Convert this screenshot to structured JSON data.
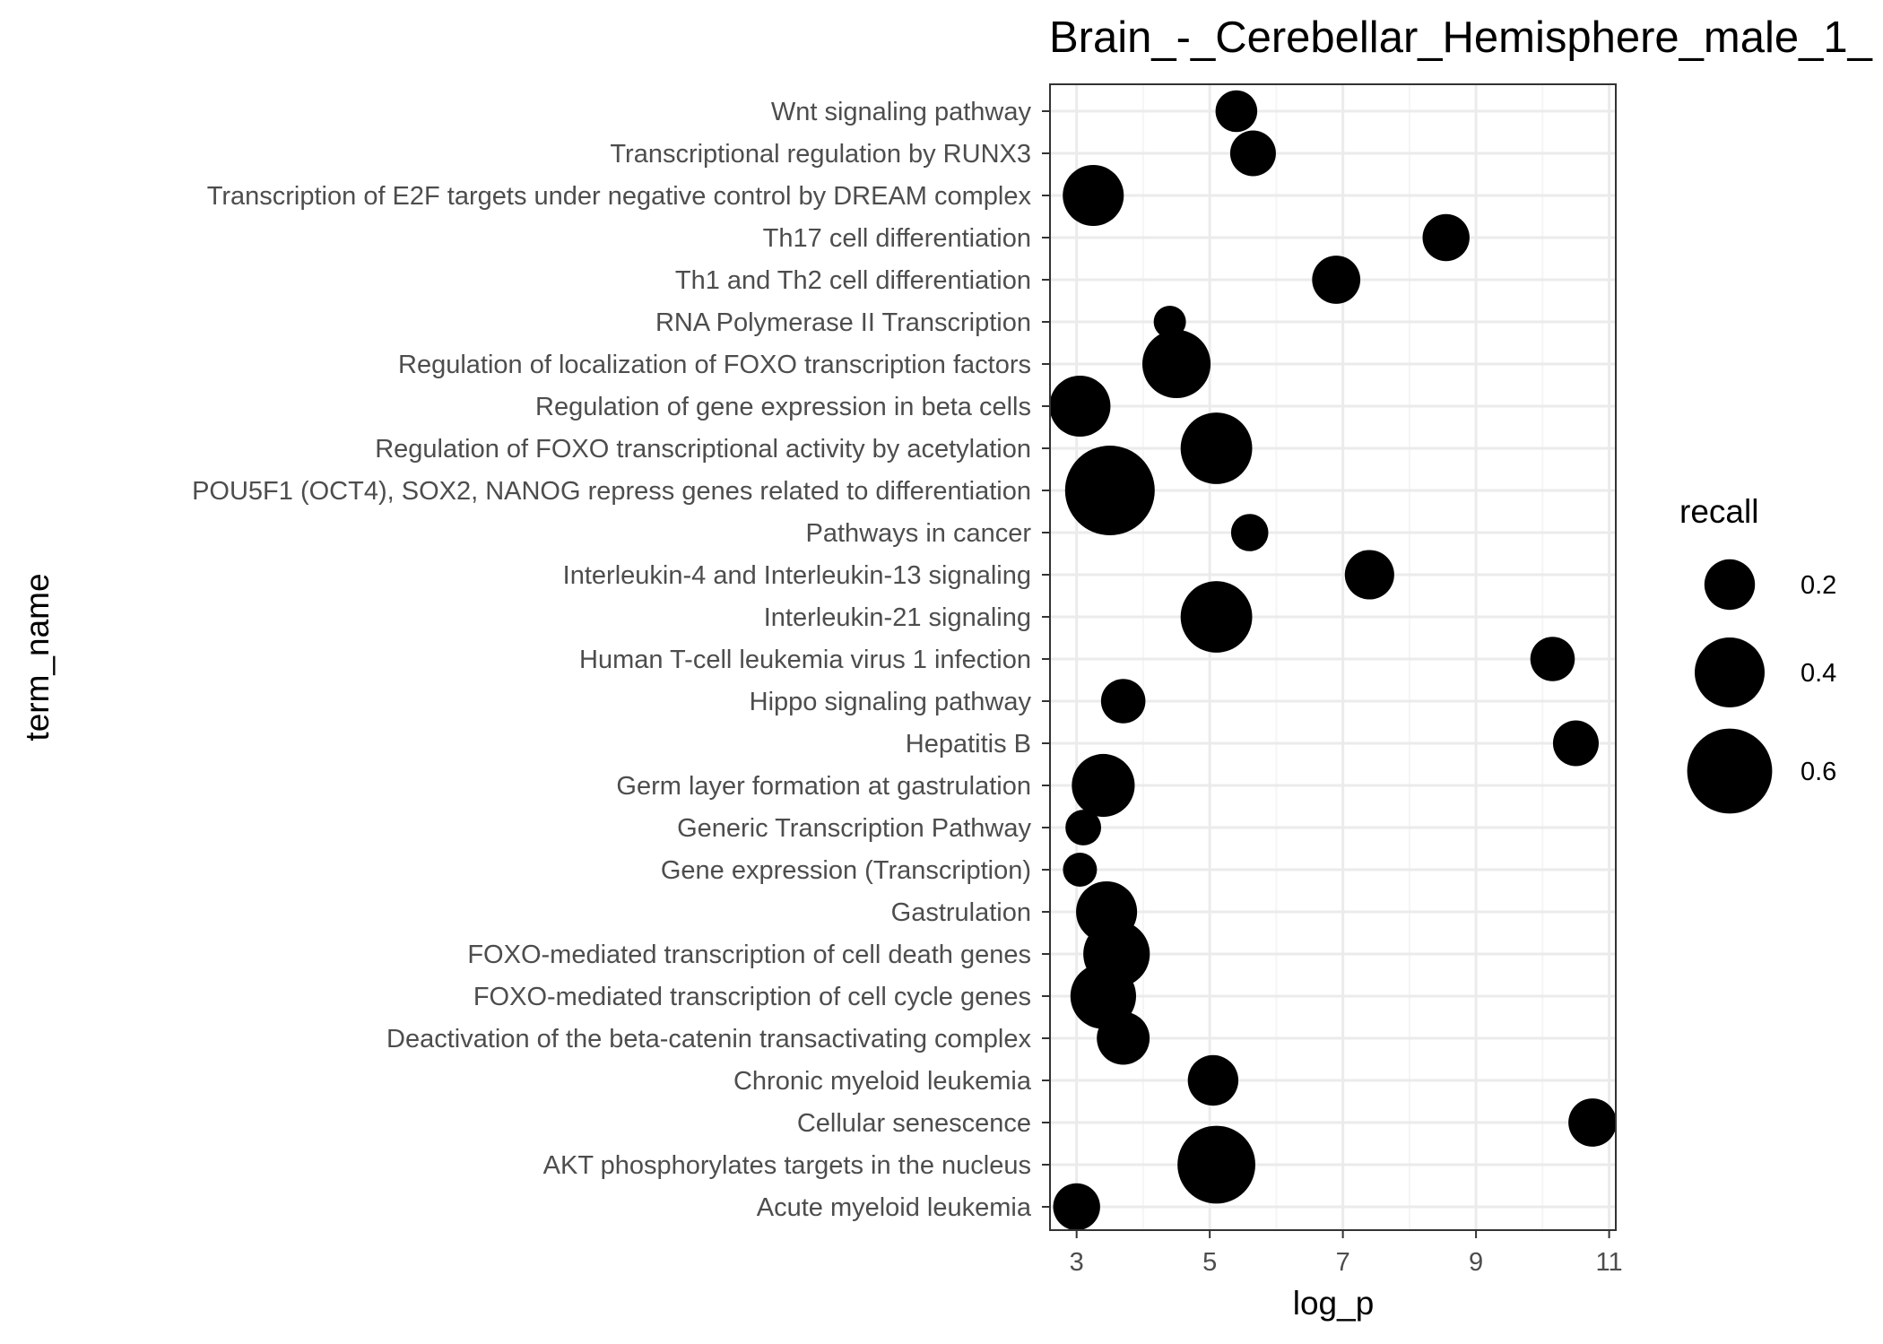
{
  "chart_data": {
    "type": "scatter",
    "title": "Brain_-_Cerebellar_Hemisphere_male_1_",
    "xlabel": "log_p",
    "ylabel": "term_name",
    "xlim": [
      2.6,
      11.1
    ],
    "xticks": [
      3,
      5,
      7,
      9,
      11
    ],
    "grid": true,
    "legend": {
      "title": "recall",
      "position": "right",
      "entries": [
        {
          "label": "0.2",
          "value": 0.2
        },
        {
          "label": "0.4",
          "value": 0.4
        },
        {
          "label": "0.6",
          "value": 0.6
        }
      ]
    },
    "points": [
      {
        "term": "Acute myeloid leukemia",
        "log_p": 3.0,
        "recall": 0.17
      },
      {
        "term": "AKT phosphorylates targets in the nucleus",
        "log_p": 5.1,
        "recall": 0.5
      },
      {
        "term": "Cellular senescence",
        "log_p": 10.75,
        "recall": 0.18
      },
      {
        "term": "Chronic myeloid leukemia",
        "log_p": 5.05,
        "recall": 0.2
      },
      {
        "term": "Deactivation of the beta-catenin transactivating complex",
        "log_p": 3.7,
        "recall": 0.22
      },
      {
        "term": "FOXO-mediated transcription of cell cycle genes",
        "log_p": 3.4,
        "recall": 0.35
      },
      {
        "term": "FOXO-mediated transcription of cell death genes",
        "log_p": 3.6,
        "recall": 0.36
      },
      {
        "term": "Gastrulation",
        "log_p": 3.45,
        "recall": 0.3
      },
      {
        "term": "Gene expression (Transcription)",
        "log_p": 3.05,
        "recall": 0.08
      },
      {
        "term": "Generic Transcription Pathway",
        "log_p": 3.1,
        "recall": 0.09
      },
      {
        "term": "Germ layer formation at gastrulation",
        "log_p": 3.4,
        "recall": 0.32
      },
      {
        "term": "Hepatitis B",
        "log_p": 10.5,
        "recall": 0.16
      },
      {
        "term": "Hippo signaling pathway",
        "log_p": 3.7,
        "recall": 0.15
      },
      {
        "term": "Human T-cell leukemia virus 1 infection",
        "log_p": 10.15,
        "recall": 0.15
      },
      {
        "term": "Interleukin-21 signaling",
        "log_p": 5.1,
        "recall": 0.42
      },
      {
        "term": "Interleukin-4 and Interleukin-13 signaling",
        "log_p": 7.4,
        "recall": 0.19
      },
      {
        "term": "Pathways in cancer",
        "log_p": 5.6,
        "recall": 0.1
      },
      {
        "term": "POU5F1 (OCT4), SOX2, NANOG repress genes related to differentiation",
        "log_p": 3.5,
        "recall": 0.67
      },
      {
        "term": "Regulation of FOXO transcriptional activity by acetylation",
        "log_p": 5.1,
        "recall": 0.42
      },
      {
        "term": "Regulation of gene expression in beta cells",
        "log_p": 3.05,
        "recall": 0.3
      },
      {
        "term": "Regulation of localization of FOXO transcription factors",
        "log_p": 4.5,
        "recall": 0.38
      },
      {
        "term": "RNA Polymerase II Transcription",
        "log_p": 4.4,
        "recall": 0.07
      },
      {
        "term": "Th1 and Th2 cell differentiation",
        "log_p": 6.9,
        "recall": 0.18
      },
      {
        "term": "Th17 cell differentiation",
        "log_p": 8.55,
        "recall": 0.17
      },
      {
        "term": "Transcription of E2F targets under negative control by DREAM complex",
        "log_p": 3.25,
        "recall": 0.3
      },
      {
        "term": "Transcriptional regulation by RUNX3",
        "log_p": 5.65,
        "recall": 0.16
      },
      {
        "term": "Wnt signaling pathway",
        "log_p": 5.4,
        "recall": 0.13
      }
    ]
  },
  "colors": {
    "point": "#000000",
    "panel_background": "#ffffff",
    "grid_major": "#ebebeb",
    "grid_minor": "#f5f5f5",
    "panel_border": "#333333",
    "tick_label": "#4d4d4d"
  }
}
